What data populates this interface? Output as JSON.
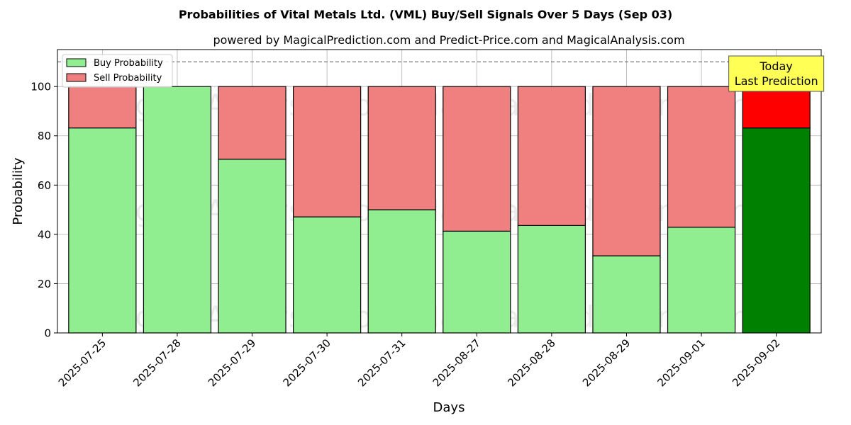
{
  "chart_data": {
    "type": "bar",
    "stacked": true,
    "title": "Probabilities of Vital Metals Ltd. (VML) Buy/Sell Signals Over 5 Days (Sep 03)",
    "subtitle": "powered by MagicalPrediction.com and Predict-Price.com and MagicalAnalysis.com",
    "xlabel": "Days",
    "ylabel": "Probability",
    "ylim": [
      0,
      115
    ],
    "yticks": [
      0,
      20,
      40,
      60,
      80,
      100
    ],
    "grid": true,
    "legend_position": "top-left",
    "reference_line": 110,
    "categories": [
      "2025-07-25",
      "2025-07-28",
      "2025-07-29",
      "2025-07-30",
      "2025-07-31",
      "2025-08-27",
      "2025-08-28",
      "2025-08-29",
      "2025-09-01",
      "2025-09-02"
    ],
    "series": [
      {
        "name": "Buy Probability",
        "color": "#90ee90",
        "highlight_color": "#008000",
        "values": [
          83.2,
          100,
          70.5,
          47.1,
          50.0,
          41.3,
          43.6,
          31.3,
          42.9,
          83.2
        ]
      },
      {
        "name": "Sell Probability",
        "color": "#f08080",
        "highlight_color": "#ff0000",
        "values": [
          16.8,
          0,
          29.5,
          52.9,
          50.0,
          58.7,
          56.4,
          68.7,
          57.1,
          16.8
        ]
      }
    ],
    "highlight_index": 9,
    "annotation": {
      "lines": [
        "Today",
        "Last Prediction"
      ],
      "background": "#ffff55"
    },
    "watermarks": [
      "MagicalAnalysis.com",
      "MagicalPrediction.com"
    ]
  }
}
